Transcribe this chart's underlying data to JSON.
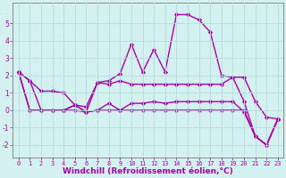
{
  "xlabel": "Windchill (Refroidissement éolien,°C)",
  "bg_color": "#d4f0f0",
  "grid_color": "#b0dede",
  "line_color": "#aa00aa",
  "marker": "D",
  "markersize": 2.2,
  "linewidth": 1.0,
  "x": [
    0,
    1,
    2,
    3,
    4,
    5,
    6,
    7,
    8,
    9,
    10,
    11,
    12,
    13,
    14,
    15,
    16,
    17,
    18,
    19,
    20,
    21,
    22,
    23
  ],
  "series": [
    [
      2.2,
      1.7,
      1.1,
      1.1,
      1.0,
      0.3,
      0.2,
      1.6,
      1.5,
      1.7,
      1.5,
      1.5,
      1.5,
      1.5,
      1.5,
      1.5,
      1.5,
      1.5,
      1.5,
      1.9,
      1.9,
      0.5,
      -0.4,
      -0.5
    ],
    [
      2.2,
      1.7,
      0.0,
      0.0,
      0.0,
      0.3,
      -0.1,
      1.6,
      1.7,
      2.1,
      3.8,
      2.2,
      3.5,
      2.2,
      5.5,
      5.5,
      5.2,
      4.5,
      2.0,
      1.9,
      0.5,
      -1.5,
      -2.0,
      -0.5
    ],
    [
      2.2,
      0.0,
      0.0,
      0.0,
      0.0,
      0.3,
      -0.1,
      0.0,
      0.4,
      0.0,
      0.4,
      0.4,
      0.5,
      0.4,
      0.5,
      0.5,
      0.5,
      0.5,
      0.5,
      0.5,
      -0.1,
      -1.5,
      -2.0,
      -0.5
    ],
    [
      2.2,
      0.0,
      0.0,
      0.0,
      0.0,
      0.0,
      -0.1,
      0.0,
      0.0,
      0.0,
      0.0,
      0.0,
      0.0,
      0.0,
      0.0,
      0.0,
      0.0,
      0.0,
      0.0,
      0.0,
      0.0,
      -1.5,
      -2.0,
      -0.5
    ]
  ],
  "ylim": [
    -2.7,
    6.2
  ],
  "xlim": [
    -0.5,
    23.5
  ],
  "yticks": [
    -2,
    -1,
    0,
    1,
    2,
    3,
    4,
    5
  ],
  "xticks": [
    0,
    1,
    2,
    3,
    4,
    5,
    6,
    7,
    8,
    9,
    10,
    11,
    12,
    13,
    14,
    15,
    16,
    17,
    18,
    19,
    20,
    21,
    22,
    23
  ],
  "tick_fontsize": 5,
  "xlabel_fontsize": 6.5,
  "xlabel_fontweight": "bold"
}
